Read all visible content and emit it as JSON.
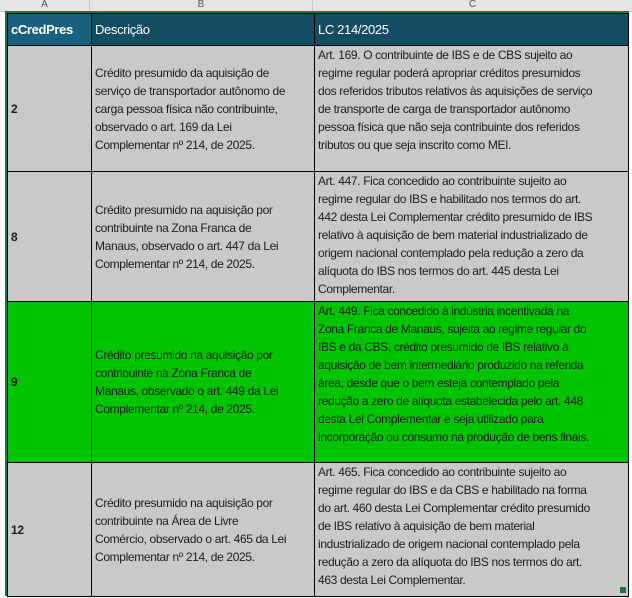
{
  "column_letters": [
    "A",
    "B",
    "C"
  ],
  "headers": {
    "code": "cCredPres",
    "desc": "Descrição",
    "law": "LC 214/2025"
  },
  "colors": {
    "header_bg": "#134d63",
    "row_gray": "#c9c9c9",
    "row_highlight": "#00c400",
    "selection": "#217346"
  },
  "rows": [
    {
      "code": "2",
      "style": "gray",
      "desc": [
        "Crédito presumido da aquisição de",
        "serviço de transportador autônomo de",
        "carga pessoa física não contribuinte,",
        "observado o art. 169 da Lei",
        "Complementar nº 214, de 2025."
      ],
      "law": [
        "Art. 169. O contribuinte de IBS e de CBS sujeito ao",
        "regime regular poderá apropriar créditos presumidos",
        "dos referidos tributos relativos às aquisições de serviço",
        "de transporte de carga de transportador autônomo",
        "pessoa física que não seja contribuinte dos referidos",
        "tributos ou que seja inscrito como MEI."
      ]
    },
    {
      "code": "8",
      "style": "gray",
      "desc": [
        "Crédito presumido na aquisição por",
        "contribuinte na Zona Franca de",
        "Manaus, observado o art. 447 da Lei",
        "Complementar nº 214, de 2025."
      ],
      "law": [
        "Art. 447. Fica concedido ao contribuinte sujeito ao",
        "regime regular do IBS e habilitado nos termos do art.",
        "442 desta Lei Complementar crédito presumido de IBS",
        "relativo à aquisição de bem material industrializado de",
        "origem nacional contemplado pela redução a zero da",
        "alíquota do IBS nos termos do art. 445 desta Lei",
        "Complementar."
      ]
    },
    {
      "code": "9",
      "style": "green",
      "desc": [
        "Crédito presumido na aquisição por",
        "contribuinte na Zona Franca de",
        "Manaus, observado o art. 449 da Lei",
        "Complementar nº 214, de 2025."
      ],
      "law": [
        "Art. 449. Fica concedido à indústria incentivada na",
        "Zona Franca de Manaus, sujeita ao regime regular do",
        "IBS e da CBS, crédito presumido de IBS relativo à",
        "aquisição de bem intermediário produzido na referida",
        "área, desde que o bem esteja contemplado pela",
        "redução a zero de alíquota estabelecida pelo art. 448",
        "desta Lei Complementar e seja utilizado para",
        "incorporação ou consumo na produção de bens finais."
      ]
    },
    {
      "code": "12",
      "style": "gray",
      "desc": [
        "Crédito presumido na aquisição por",
        "contribuinte na Área de Livre",
        "Comércio, observado o art. 465 da Lei",
        "Complementar nº 214, de 2025."
      ],
      "law": [
        "Art. 465. Fica concedido ao contribuinte sujeito ao",
        "regime regular do IBS e da CBS e habilitado na forma",
        "do art. 460 desta Lei Complementar crédito presumido",
        "de IBS relativo à aquisição de bem material",
        "industrializado de origem nacional contemplado pela",
        "redução a zero da alíquota do IBS nos termos do art.",
        "463 desta Lei Complementar."
      ]
    }
  ]
}
